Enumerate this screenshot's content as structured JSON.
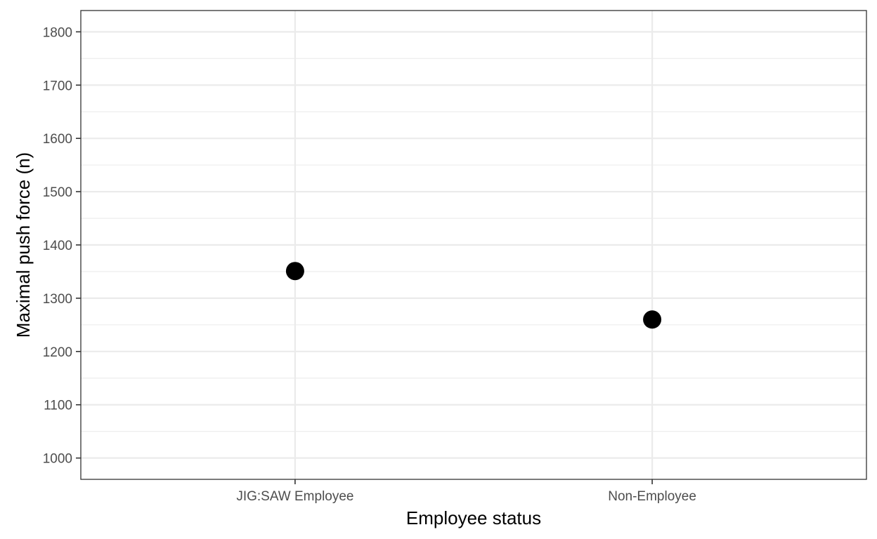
{
  "chart_data": {
    "type": "scatter",
    "title": "",
    "xlabel": "Employee status",
    "ylabel": "Maximal push force (n)",
    "categories": [
      "JIG:SAW Employee",
      "Non-Employee"
    ],
    "values": [
      1351,
      1260
    ],
    "ylim": [
      960,
      1840
    ],
    "yticks": [
      1000,
      1100,
      1200,
      1300,
      1400,
      1500,
      1600,
      1700,
      1800
    ],
    "ytick_labels": [
      "1000",
      "1100",
      "1200",
      "1300",
      "1400",
      "1500",
      "1600",
      "1700",
      "1800"
    ],
    "grid": true,
    "legend": "none",
    "colors": {
      "point": "#000000",
      "grid": "#ebebeb",
      "panel_border": "#333333",
      "tick_text": "#4d4d4d"
    }
  }
}
